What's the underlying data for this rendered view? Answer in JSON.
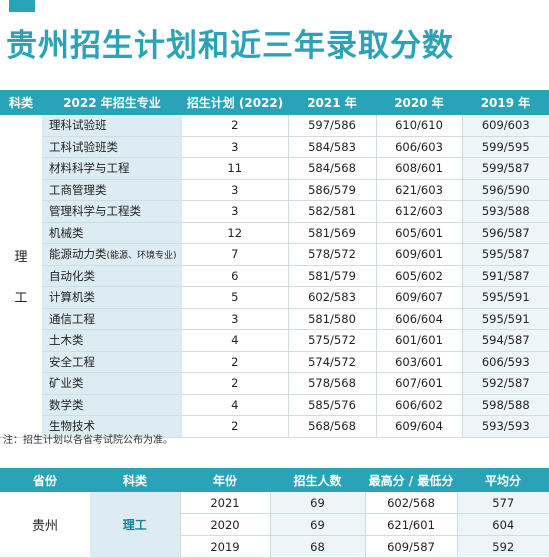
{
  "title": "贵州招生计划和近三年录取分数",
  "table1": {
    "headers": [
      "科类",
      "2022 年招生专业",
      "招生计划 (2022)",
      "2021 年",
      "2020 年",
      "2019 年"
    ],
    "category_chars": [
      "理",
      "工"
    ],
    "rows": [
      {
        "major": "理科试验班",
        "plan": "2",
        "y2021": "597/586",
        "y2020": "610/610",
        "y2019": "609/603"
      },
      {
        "major": "工科试验班类",
        "plan": "3",
        "y2021": "584/583",
        "y2020": "606/603",
        "y2019": "599/595"
      },
      {
        "major": "材料科学与工程",
        "plan": "11",
        "y2021": "584/568",
        "y2020": "608/601",
        "y2019": "599/587"
      },
      {
        "major": "工商管理类",
        "plan": "3",
        "y2021": "586/579",
        "y2020": "621/603",
        "y2019": "596/590"
      },
      {
        "major": "管理科学与工程类",
        "plan": "3",
        "y2021": "582/581",
        "y2020": "612/603",
        "y2019": "593/588"
      },
      {
        "major": "机械类",
        "plan": "12",
        "y2021": "581/569",
        "y2020": "605/601",
        "y2019": "596/587"
      },
      {
        "major": "能源动力类",
        "major_note": "(能源、环境专业)",
        "plan": "7",
        "y2021": "578/572",
        "y2020": "609/601",
        "y2019": "595/587"
      },
      {
        "major": "自动化类",
        "plan": "6",
        "y2021": "581/579",
        "y2020": "605/602",
        "y2019": "591/587"
      },
      {
        "major": "计算机类",
        "plan": "5",
        "y2021": "602/583",
        "y2020": "609/607",
        "y2019": "595/591"
      },
      {
        "major": "通信工程",
        "plan": "3",
        "y2021": "581/580",
        "y2020": "606/604",
        "y2019": "595/591"
      },
      {
        "major": "土木类",
        "plan": "4",
        "y2021": "575/572",
        "y2020": "601/601",
        "y2019": "594/587"
      },
      {
        "major": "安全工程",
        "plan": "2",
        "y2021": "574/572",
        "y2020": "603/601",
        "y2019": "606/593"
      },
      {
        "major": "矿业类",
        "plan": "2",
        "y2021": "578/568",
        "y2020": "607/601",
        "y2019": "592/587"
      },
      {
        "major": "数学类",
        "plan": "4",
        "y2021": "585/576",
        "y2020": "606/602",
        "y2019": "598/588"
      },
      {
        "major": "生物技术",
        "plan": "2",
        "y2021": "568/568",
        "y2020": "609/604",
        "y2019": "593/593"
      }
    ]
  },
  "note": "注：招生计划以各省考试院公布为准。",
  "table2": {
    "headers": [
      "省份",
      "科类",
      "年份",
      "招生人数",
      "最高分 / 最低分",
      "平均分"
    ],
    "province": "贵州",
    "subject": "理工",
    "rows": [
      {
        "year": "2021",
        "count": "69",
        "maxmin": "602/568",
        "avg": "577"
      },
      {
        "year": "2020",
        "count": "69",
        "maxmin": "621/601",
        "avg": "604"
      },
      {
        "year": "2019",
        "count": "68",
        "maxmin": "609/587",
        "avg": "592"
      }
    ]
  },
  "colors": {
    "accent": "#2aa3b8",
    "light": "#dcecf2",
    "lighter": "#eef5f8"
  }
}
